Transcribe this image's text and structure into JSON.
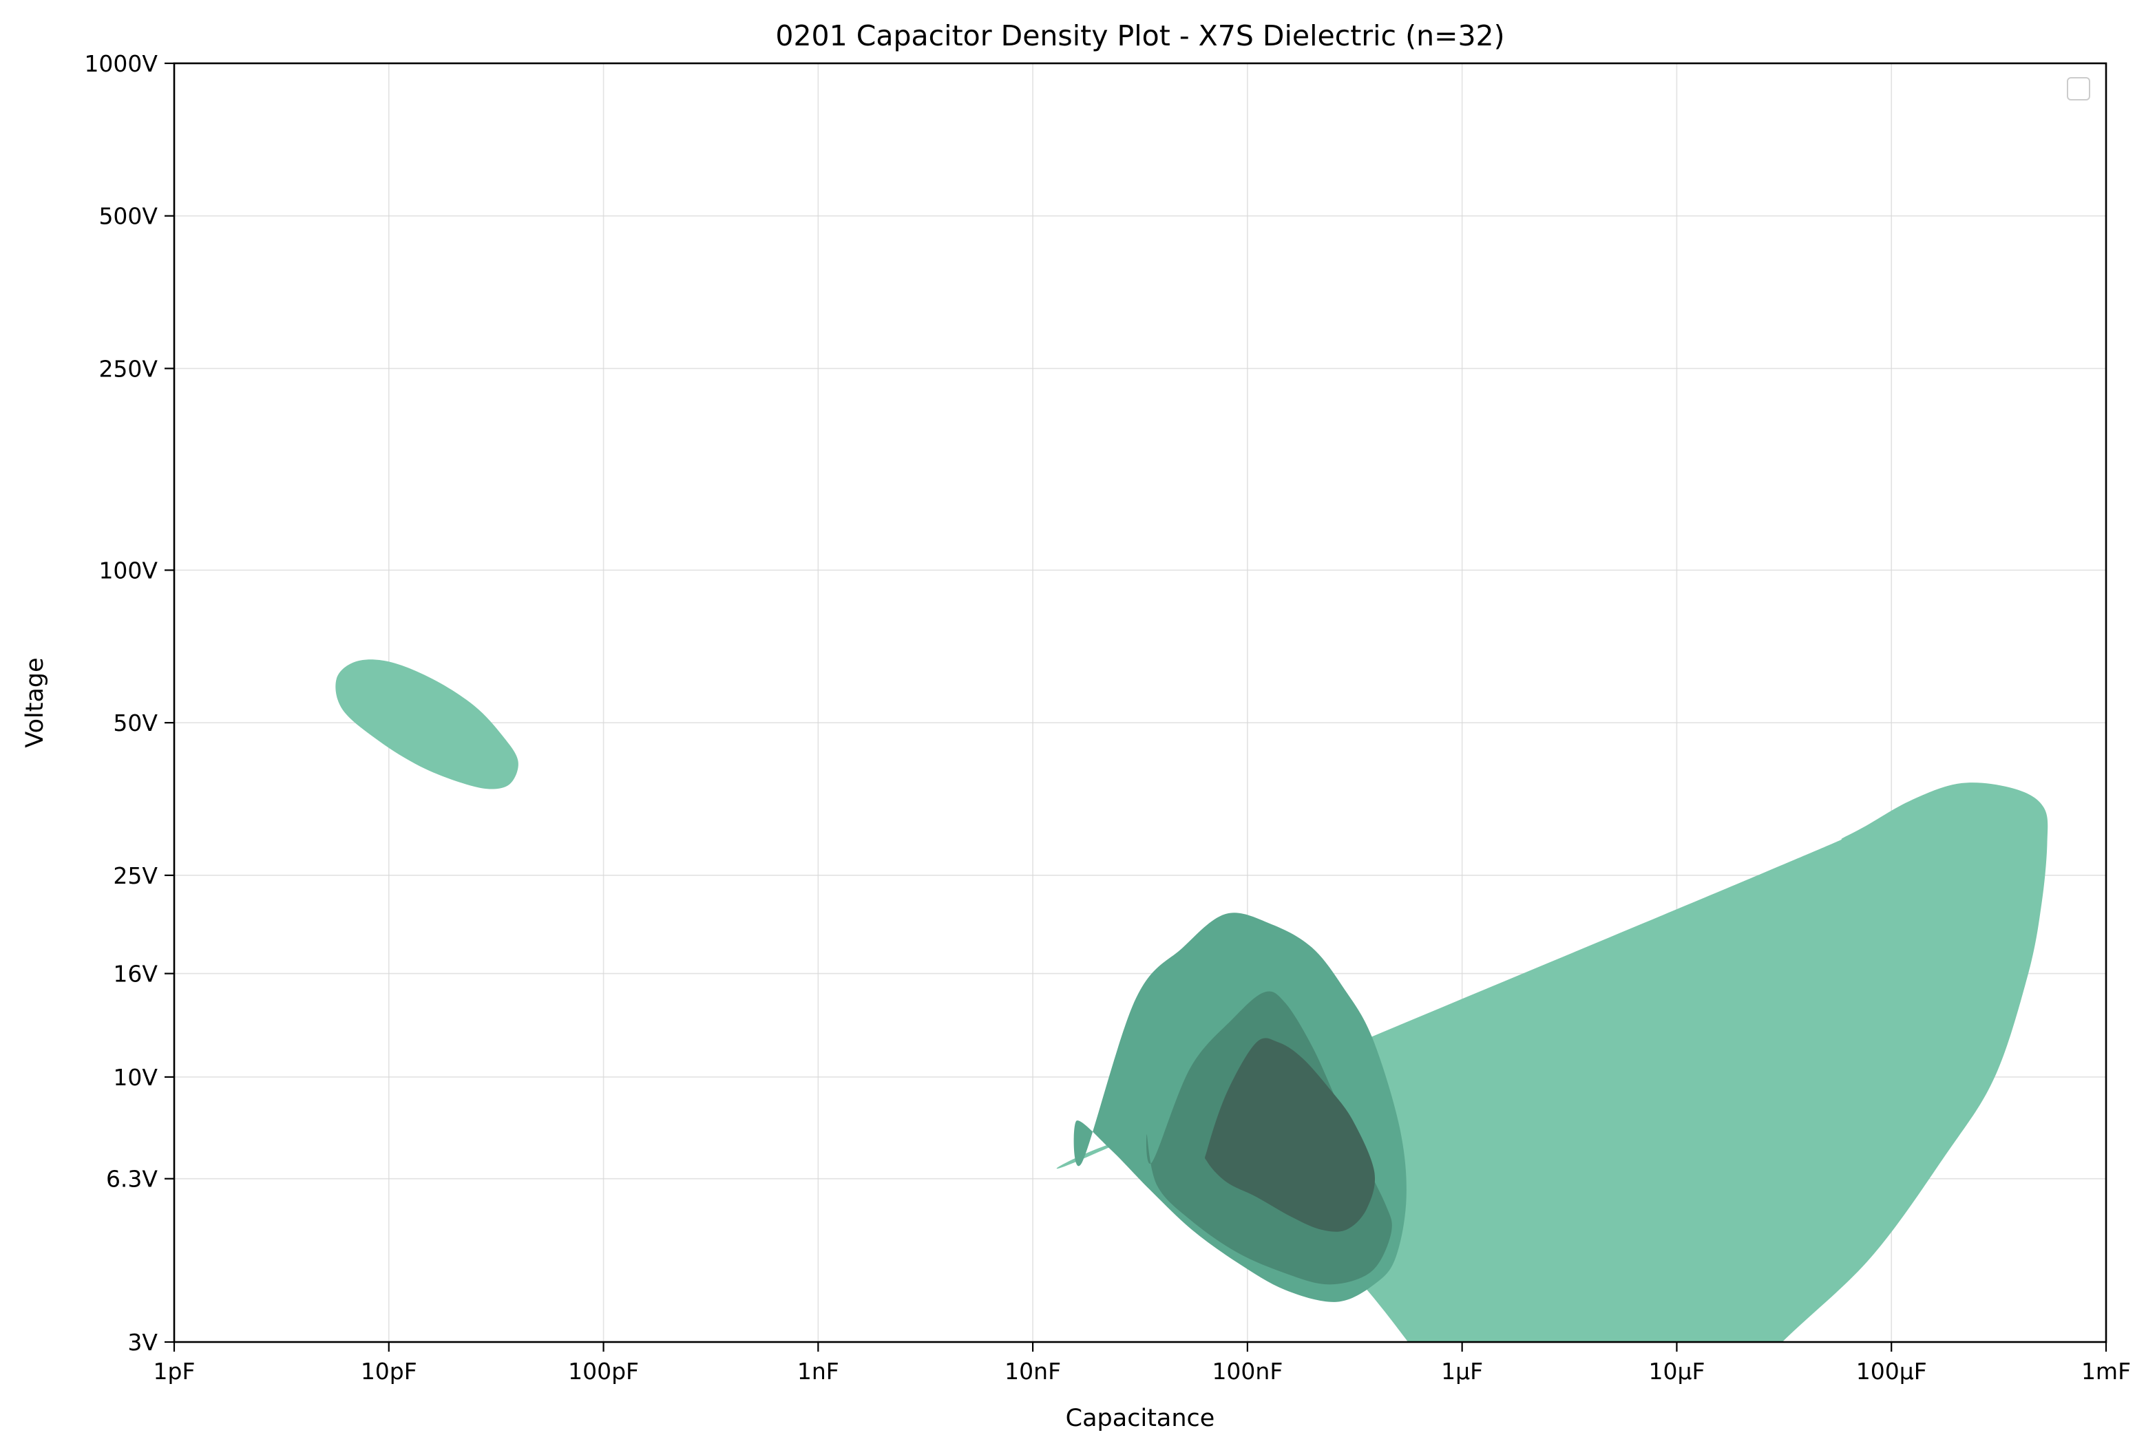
{
  "chart_data": {
    "type": "density-contour",
    "title": "0201 Capacitor Density Plot - X7S Dielectric (n=32)",
    "xlabel": "Capacitance",
    "ylabel": "Voltage",
    "x_scale": "log",
    "y_scale": "log",
    "x_unit": "F",
    "y_unit": "V",
    "xlim": [
      1e-12,
      0.001
    ],
    "ylim": [
      3,
      1000
    ],
    "x_ticks": [
      {
        "value": 1e-12,
        "label": "1pF"
      },
      {
        "value": 1e-11,
        "label": "10pF"
      },
      {
        "value": 1e-10,
        "label": "100pF"
      },
      {
        "value": 1e-09,
        "label": "1nF"
      },
      {
        "value": 1e-08,
        "label": "10nF"
      },
      {
        "value": 1e-07,
        "label": "100nF"
      },
      {
        "value": 1e-06,
        "label": "1µF"
      },
      {
        "value": 1e-05,
        "label": "10µF"
      },
      {
        "value": 0.0001,
        "label": "100µF"
      },
      {
        "value": 0.001,
        "label": "1mF"
      }
    ],
    "y_ticks": [
      {
        "value": 3,
        "label": "3V"
      },
      {
        "value": 6.3,
        "label": "6.3V"
      },
      {
        "value": 10,
        "label": "10V"
      },
      {
        "value": 16,
        "label": "16V"
      },
      {
        "value": 25,
        "label": "25V"
      },
      {
        "value": 50,
        "label": "50V"
      },
      {
        "value": 100,
        "label": "100V"
      },
      {
        "value": 250,
        "label": "250V"
      },
      {
        "value": 500,
        "label": "500V"
      },
      {
        "value": 1000,
        "label": "1000V"
      }
    ],
    "grid": true,
    "legend": {
      "placement": "top-right",
      "entries": []
    },
    "colors": {
      "level_1": "#7bc6ab",
      "level_2": "#5ba88f",
      "level_3": "#4a8a75",
      "level_4": "#41665a"
    },
    "contours": [
      {
        "level": 1,
        "color": "#7bc6ab",
        "points": [
          [
            1.86e-08,
            2.38e-05,
            6.3e-05,
            0.000121,
            0.000213,
            0.000378,
            0.000513,
            0.000532,
            0.000501,
            0.000434,
            0.000303,
            0.000178,
            8e-05,
            3.1e-05,
            1.05e-05,
            3.3e-06,
            1.35e-06,
            5.6e-07,
            2.1e-07,
            4.4e-08
          ],
          [
            7.0,
            25.0,
            30.0,
            35.0,
            38.0,
            37.0,
            34.0,
            29.0,
            22.0,
            16.0,
            10.0,
            7.0,
            4.4,
            3.0,
            1.9,
            1.45,
            1.7,
            3.0,
            4.8,
            7.7
          ]
        ]
      },
      {
        "level": 1,
        "color": "#7bc6ab",
        "points": [
          [
            7e-12,
            1e-11,
            1.6e-11,
            2.5e-11,
            3.4e-11,
            4e-11,
            3.7e-11,
            3e-11,
            2.2e-11,
            1.4e-11,
            9e-12,
            6.1e-12,
            5.7e-12
          ],
          [
            66.0,
            66.0,
            61.0,
            54.0,
            47.0,
            42.0,
            38.0,
            37.0,
            38.0,
            41.0,
            46.0,
            53.0,
            61.0
          ]
        ]
      },
      {
        "level": 2,
        "color": "#5ba88f",
        "points": [
          [
            1.7e-08,
            3e-08,
            5e-08,
            8e-08,
            1.3e-07,
            2e-07,
            2.8e-07,
            3.8e-07,
            5.1e-07,
            5.5e-07,
            4.9e-07,
            3.9e-07,
            2.6e-07,
            1.5e-07,
            9e-08,
            5.5e-08,
            3.5e-08,
            2.3e-08,
            1.6e-08
          ],
          [
            6.8,
            14.2,
            18.0,
            21.0,
            20.0,
            18.0,
            15.0,
            12.0,
            8.0,
            5.8,
            4.4,
            3.9,
            3.6,
            3.8,
            4.3,
            5.0,
            6.0,
            7.2,
            8.2
          ]
        ]
      },
      {
        "level": 3,
        "color": "#4a8a75",
        "points": [
          [
            3.6e-08,
            5.4e-08,
            8.5e-08,
            1.2e-07,
            1.5e-07,
            2e-07,
            2.6e-07,
            3.4e-07,
            4.4e-07,
            4.7e-07,
            4.1e-07,
            3.3e-07,
            2.3e-07,
            1.5e-07,
            9e-08,
            5.5e-08,
            3.8e-08,
            3.4e-08
          ],
          [
            6.8,
            10.4,
            13.0,
            14.7,
            14.0,
            11.5,
            9.0,
            7.0,
            5.6,
            5.0,
            4.3,
            4.0,
            3.9,
            4.1,
            4.5,
            5.2,
            6.1,
            7.7
          ]
        ]
      },
      {
        "level": 4,
        "color": "#41665a",
        "points": [
          [
            6.5e-08,
            8e-08,
            1.1e-07,
            1.4e-07,
            1.8e-07,
            2.4e-07,
            3.1e-07,
            3.9e-07,
            3.6e-07,
            2.9e-07,
            2.2e-07,
            1.6e-07,
            1.1e-07,
            8e-08,
            6.5e-08
          ],
          [
            7.2,
            9.3,
            11.7,
            11.7,
            10.9,
            9.5,
            8.2,
            6.5,
            5.5,
            5.0,
            5.0,
            5.3,
            5.8,
            6.2,
            6.8
          ]
        ]
      }
    ]
  }
}
